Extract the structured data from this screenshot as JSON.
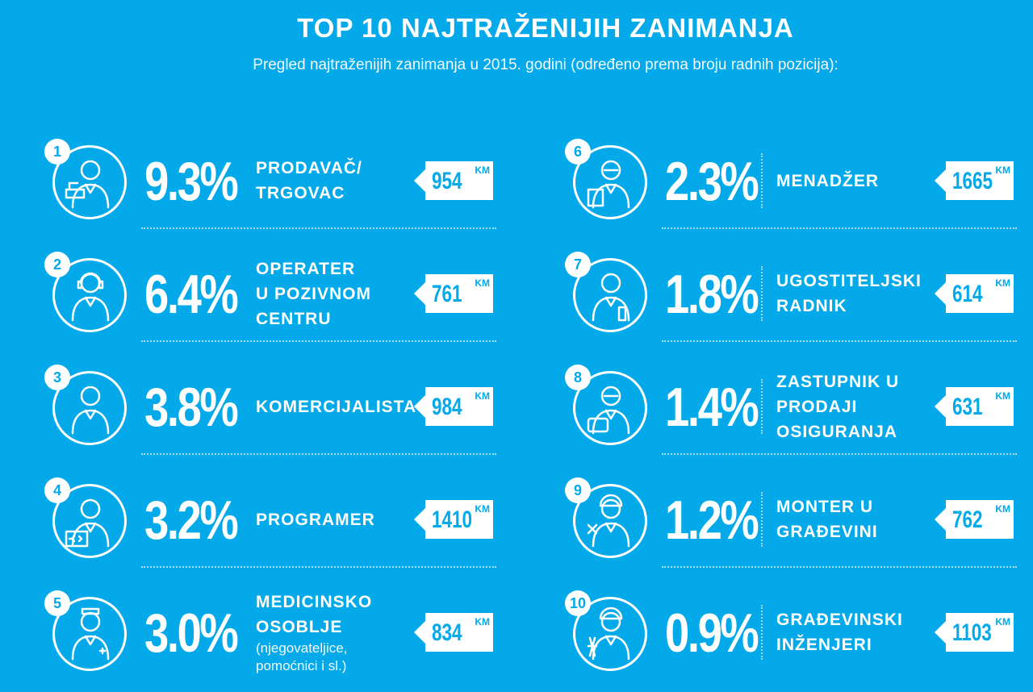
{
  "title": "TOP 10 NAJTRAŽENIJIH ZANIMANJA",
  "subtitle": "Pregled najtraženijih zanimanja u 2015. godini (određeno prema broju radnih pozicija):",
  "currency": "KM",
  "colors": {
    "background": "#03a9e8",
    "foreground": "#ffffff"
  },
  "jobs": [
    {
      "rank": "1",
      "percent": "9.3%",
      "lines": [
        "PRODAVAČ/",
        "TRGOVAC"
      ],
      "note": "",
      "salary": "954",
      "icon": "cashier-icon"
    },
    {
      "rank": "2",
      "percent": "6.4%",
      "lines": [
        "OPERATER",
        "U POZIVNOM",
        "CENTRU"
      ],
      "note": "",
      "salary": "761",
      "icon": "headset-operator-icon"
    },
    {
      "rank": "3",
      "percent": "3.8%",
      "lines": [
        "KOMERCIJALISTA"
      ],
      "note": "",
      "salary": "984",
      "icon": "salesperson-icon"
    },
    {
      "rank": "4",
      "percent": "3.2%",
      "lines": [
        "PROGRAMER"
      ],
      "note": "",
      "salary": "1410",
      "icon": "programmer-icon"
    },
    {
      "rank": "5",
      "percent": "3.0%",
      "lines": [
        "MEDICINSKO",
        "OSOBLJE"
      ],
      "note": "(njegovateljice, pomoćnici i sl.)",
      "salary": "834",
      "icon": "medical-staff-icon"
    },
    {
      "rank": "6",
      "percent": "2.3%",
      "lines": [
        "MENADŽER"
      ],
      "note": "",
      "salary": "1665",
      "icon": "manager-icon"
    },
    {
      "rank": "7",
      "percent": "1.8%",
      "lines": [
        "UGOSTITELJSKI",
        "RADNIK"
      ],
      "note": "",
      "salary": "614",
      "icon": "waiter-icon"
    },
    {
      "rank": "8",
      "percent": "1.4%",
      "lines": [
        "ZASTUPNIK U",
        "PRODAJI",
        "OSIGURANJA"
      ],
      "note": "",
      "salary": "631",
      "icon": "insurance-agent-icon"
    },
    {
      "rank": "9",
      "percent": "1.2%",
      "lines": [
        "MONTER U",
        "GRAĐEVINI"
      ],
      "note": "",
      "salary": "762",
      "icon": "construction-fitter-icon"
    },
    {
      "rank": "10",
      "percent": "0.9%",
      "lines": [
        "GRAĐEVINSKI",
        "INŽENJERI"
      ],
      "note": "",
      "salary": "1103",
      "icon": "civil-engineer-icon"
    }
  ]
}
